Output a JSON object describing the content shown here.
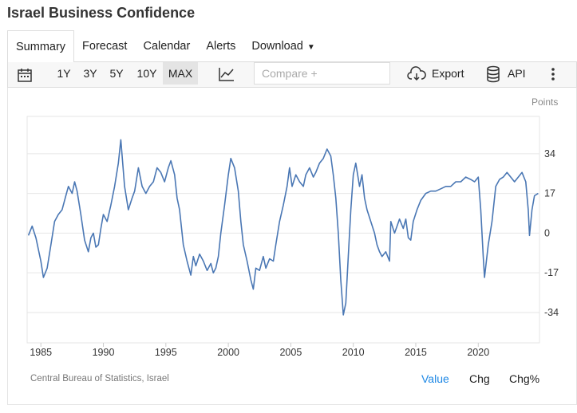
{
  "page": {
    "title": "Israel Business Confidence"
  },
  "tabs": [
    "Summary",
    "Forecast",
    "Calendar",
    "Alerts",
    "Download"
  ],
  "toolbar": {
    "ranges": [
      "1Y",
      "3Y",
      "5Y",
      "10Y",
      "MAX"
    ],
    "active_range": "MAX",
    "compare_placeholder": "Compare +",
    "export_label": "Export",
    "api_label": "API"
  },
  "footer": {
    "source": "Central Bureau of Statistics, Israel",
    "modes": [
      "Value",
      "Chg",
      "Chg%"
    ],
    "active_mode": "Value"
  },
  "colors": {
    "line": "#4a77b4",
    "accent": "#1e88e5",
    "grid": "#e6e6e6"
  },
  "chart_data": {
    "type": "line",
    "title": "Israel Business Confidence",
    "ylabel": "Points",
    "xlabel": "",
    "y_ticks": [
      34,
      17,
      0,
      -17,
      -34
    ],
    "ylim": [
      -47,
      50
    ],
    "x_ticks": [
      1985,
      1990,
      1995,
      2000,
      2005,
      2010,
      2015,
      2020
    ],
    "xlim": [
      1983.9,
      2024.9
    ],
    "series": [
      {
        "name": "Business Confidence",
        "points": [
          [
            1984.0,
            -1
          ],
          [
            1984.3,
            3
          ],
          [
            1984.6,
            -2
          ],
          [
            1985.0,
            -12
          ],
          [
            1985.2,
            -19
          ],
          [
            1985.5,
            -15
          ],
          [
            1985.8,
            -5
          ],
          [
            1986.1,
            5
          ],
          [
            1986.4,
            8
          ],
          [
            1986.7,
            10
          ],
          [
            1987.0,
            16
          ],
          [
            1987.2,
            20
          ],
          [
            1987.5,
            17
          ],
          [
            1987.7,
            22
          ],
          [
            1987.9,
            18
          ],
          [
            1988.2,
            8
          ],
          [
            1988.5,
            -3
          ],
          [
            1988.8,
            -8
          ],
          [
            1989.0,
            -2
          ],
          [
            1989.2,
            0
          ],
          [
            1989.4,
            -6
          ],
          [
            1989.6,
            -5
          ],
          [
            1989.8,
            2
          ],
          [
            1990.0,
            8
          ],
          [
            1990.3,
            5
          ],
          [
            1990.6,
            12
          ],
          [
            1990.9,
            20
          ],
          [
            1991.2,
            30
          ],
          [
            1991.4,
            40
          ],
          [
            1991.7,
            20
          ],
          [
            1992.0,
            10
          ],
          [
            1992.3,
            15
          ],
          [
            1992.5,
            18
          ],
          [
            1992.8,
            28
          ],
          [
            1993.1,
            20
          ],
          [
            1993.4,
            17
          ],
          [
            1993.7,
            20
          ],
          [
            1994.0,
            22
          ],
          [
            1994.3,
            28
          ],
          [
            1994.6,
            26
          ],
          [
            1994.9,
            22
          ],
          [
            1995.2,
            28
          ],
          [
            1995.4,
            31
          ],
          [
            1995.7,
            25
          ],
          [
            1995.9,
            15
          ],
          [
            1996.1,
            10
          ],
          [
            1996.4,
            -5
          ],
          [
            1996.7,
            -12
          ],
          [
            1997.0,
            -18
          ],
          [
            1997.2,
            -10
          ],
          [
            1997.4,
            -14
          ],
          [
            1997.7,
            -9
          ],
          [
            1998.0,
            -12
          ],
          [
            1998.3,
            -16
          ],
          [
            1998.6,
            -13
          ],
          [
            1998.8,
            -17
          ],
          [
            1999.0,
            -15
          ],
          [
            1999.2,
            -10
          ],
          [
            1999.4,
            0
          ],
          [
            1999.7,
            12
          ],
          [
            2000.0,
            25
          ],
          [
            2000.2,
            32
          ],
          [
            2000.5,
            28
          ],
          [
            2000.8,
            18
          ],
          [
            2001.0,
            5
          ],
          [
            2001.2,
            -5
          ],
          [
            2001.5,
            -12
          ],
          [
            2001.8,
            -20
          ],
          [
            2002.0,
            -24
          ],
          [
            2002.2,
            -15
          ],
          [
            2002.5,
            -16
          ],
          [
            2002.8,
            -10
          ],
          [
            2003.0,
            -15
          ],
          [
            2003.3,
            -11
          ],
          [
            2003.6,
            -12
          ],
          [
            2003.8,
            -5
          ],
          [
            2004.1,
            5
          ],
          [
            2004.4,
            12
          ],
          [
            2004.7,
            20
          ],
          [
            2004.9,
            28
          ],
          [
            2005.1,
            20
          ],
          [
            2005.4,
            25
          ],
          [
            2005.7,
            22
          ],
          [
            2006.0,
            20
          ],
          [
            2006.2,
            25
          ],
          [
            2006.5,
            28
          ],
          [
            2006.8,
            24
          ],
          [
            2007.0,
            26
          ],
          [
            2007.3,
            30
          ],
          [
            2007.6,
            32
          ],
          [
            2007.9,
            36
          ],
          [
            2008.2,
            33
          ],
          [
            2008.4,
            25
          ],
          [
            2008.6,
            15
          ],
          [
            2008.8,
            0
          ],
          [
            2009.0,
            -20
          ],
          [
            2009.2,
            -35
          ],
          [
            2009.4,
            -30
          ],
          [
            2009.6,
            -10
          ],
          [
            2009.8,
            10
          ],
          [
            2010.0,
            25
          ],
          [
            2010.2,
            30
          ],
          [
            2010.5,
            20
          ],
          [
            2010.7,
            25
          ],
          [
            2010.9,
            15
          ],
          [
            2011.1,
            10
          ],
          [
            2011.4,
            5
          ],
          [
            2011.7,
            0
          ],
          [
            2011.9,
            -5
          ],
          [
            2012.1,
            -8
          ],
          [
            2012.3,
            -10
          ],
          [
            2012.6,
            -8
          ],
          [
            2012.9,
            -12
          ],
          [
            2013.0,
            5
          ],
          [
            2013.3,
            0
          ],
          [
            2013.5,
            3
          ],
          [
            2013.7,
            6
          ],
          [
            2014.0,
            2
          ],
          [
            2014.2,
            6
          ],
          [
            2014.4,
            -2
          ],
          [
            2014.6,
            -3
          ],
          [
            2014.8,
            5
          ],
          [
            2015.1,
            10
          ],
          [
            2015.4,
            14
          ],
          [
            2015.8,
            17
          ],
          [
            2016.2,
            18
          ],
          [
            2016.6,
            18
          ],
          [
            2017.0,
            19
          ],
          [
            2017.4,
            20
          ],
          [
            2017.8,
            20
          ],
          [
            2018.2,
            22
          ],
          [
            2018.6,
            22
          ],
          [
            2019.0,
            24
          ],
          [
            2019.4,
            23
          ],
          [
            2019.7,
            22
          ],
          [
            2020.0,
            24
          ],
          [
            2020.2,
            10
          ],
          [
            2020.4,
            -10
          ],
          [
            2020.5,
            -19
          ],
          [
            2020.8,
            -5
          ],
          [
            2021.1,
            5
          ],
          [
            2021.4,
            20
          ],
          [
            2021.7,
            23
          ],
          [
            2022.0,
            24
          ],
          [
            2022.3,
            26
          ],
          [
            2022.6,
            24
          ],
          [
            2022.9,
            22
          ],
          [
            2023.2,
            24
          ],
          [
            2023.5,
            26
          ],
          [
            2023.8,
            22
          ],
          [
            2024.0,
            10
          ],
          [
            2024.1,
            -1
          ],
          [
            2024.3,
            10
          ],
          [
            2024.5,
            16
          ],
          [
            2024.8,
            17
          ]
        ]
      }
    ]
  }
}
